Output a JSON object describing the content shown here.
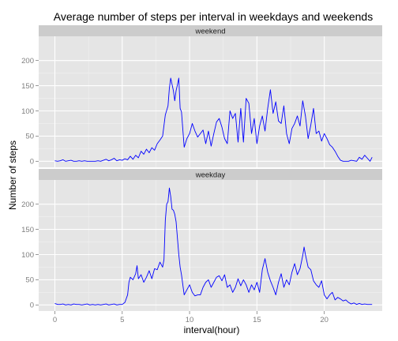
{
  "chart_data": {
    "type": "line",
    "title": "Average number of steps per interval in weekdays and weekends",
    "xlabel": "interval(hour)",
    "ylabel": "Number of steps",
    "xlim": [
      -1.2,
      24.3
    ],
    "ylim": [
      -12,
      248
    ],
    "x_ticks": [
      0,
      5,
      10,
      15,
      20
    ],
    "y_ticks": [
      0,
      50,
      100,
      150,
      200
    ],
    "grid": true,
    "line_color": "#0000ff",
    "panel_background": "#e5e5e5",
    "strip_background": "#cccccc",
    "panels": [
      {
        "label": "weekend",
        "points": [
          [
            0.0,
            1
          ],
          [
            0.2,
            0
          ],
          [
            0.4,
            1
          ],
          [
            0.6,
            3
          ],
          [
            0.8,
            0
          ],
          [
            1.0,
            1
          ],
          [
            1.2,
            2
          ],
          [
            1.4,
            0
          ],
          [
            1.6,
            0
          ],
          [
            1.8,
            1
          ],
          [
            2.0,
            0
          ],
          [
            2.2,
            1
          ],
          [
            2.4,
            0
          ],
          [
            2.6,
            0
          ],
          [
            2.8,
            0
          ],
          [
            3.0,
            0
          ],
          [
            3.2,
            1
          ],
          [
            3.4,
            0
          ],
          [
            3.6,
            2
          ],
          [
            3.8,
            4
          ],
          [
            4.0,
            1
          ],
          [
            4.2,
            3
          ],
          [
            4.4,
            6
          ],
          [
            4.6,
            1
          ],
          [
            4.8,
            3
          ],
          [
            5.0,
            2
          ],
          [
            5.2,
            5
          ],
          [
            5.4,
            3
          ],
          [
            5.6,
            10
          ],
          [
            5.8,
            4
          ],
          [
            6.0,
            12
          ],
          [
            6.2,
            7
          ],
          [
            6.4,
            20
          ],
          [
            6.6,
            14
          ],
          [
            6.8,
            24
          ],
          [
            7.0,
            17
          ],
          [
            7.2,
            27
          ],
          [
            7.4,
            22
          ],
          [
            7.6,
            35
          ],
          [
            7.8,
            42
          ],
          [
            8.0,
            50
          ],
          [
            8.2,
            92
          ],
          [
            8.4,
            110
          ],
          [
            8.5,
            145
          ],
          [
            8.6,
            165
          ],
          [
            8.8,
            140
          ],
          [
            8.9,
            120
          ],
          [
            9.0,
            140
          ],
          [
            9.1,
            152
          ],
          [
            9.2,
            165
          ],
          [
            9.3,
            105
          ],
          [
            9.4,
            98
          ],
          [
            9.6,
            28
          ],
          [
            9.8,
            45
          ],
          [
            10.0,
            55
          ],
          [
            10.2,
            75
          ],
          [
            10.4,
            60
          ],
          [
            10.6,
            48
          ],
          [
            10.8,
            55
          ],
          [
            11.0,
            62
          ],
          [
            11.2,
            35
          ],
          [
            11.4,
            60
          ],
          [
            11.6,
            30
          ],
          [
            11.8,
            55
          ],
          [
            12.0,
            78
          ],
          [
            12.2,
            85
          ],
          [
            12.4,
            68
          ],
          [
            12.6,
            45
          ],
          [
            12.8,
            35
          ],
          [
            13.0,
            100
          ],
          [
            13.2,
            85
          ],
          [
            13.4,
            95
          ],
          [
            13.6,
            38
          ],
          [
            13.8,
            105
          ],
          [
            14.0,
            38
          ],
          [
            14.2,
            125
          ],
          [
            14.4,
            115
          ],
          [
            14.6,
            55
          ],
          [
            14.8,
            85
          ],
          [
            15.0,
            35
          ],
          [
            15.2,
            70
          ],
          [
            15.4,
            90
          ],
          [
            15.6,
            60
          ],
          [
            15.8,
            105
          ],
          [
            16.0,
            142
          ],
          [
            16.2,
            95
          ],
          [
            16.4,
            118
          ],
          [
            16.6,
            80
          ],
          [
            16.8,
            75
          ],
          [
            17.0,
            110
          ],
          [
            17.2,
            55
          ],
          [
            17.4,
            35
          ],
          [
            17.6,
            65
          ],
          [
            17.8,
            75
          ],
          [
            18.0,
            90
          ],
          [
            18.2,
            70
          ],
          [
            18.4,
            120
          ],
          [
            18.6,
            90
          ],
          [
            18.8,
            45
          ],
          [
            19.0,
            72
          ],
          [
            19.2,
            105
          ],
          [
            19.4,
            55
          ],
          [
            19.6,
            60
          ],
          [
            19.8,
            40
          ],
          [
            20.0,
            55
          ],
          [
            20.2,
            45
          ],
          [
            20.4,
            33
          ],
          [
            20.6,
            28
          ],
          [
            20.8,
            20
          ],
          [
            21.0,
            10
          ],
          [
            21.2,
            2
          ],
          [
            21.4,
            0
          ],
          [
            21.6,
            0
          ],
          [
            21.8,
            0
          ],
          [
            22.0,
            2
          ],
          [
            22.2,
            1
          ],
          [
            22.4,
            0
          ],
          [
            22.6,
            8
          ],
          [
            22.8,
            4
          ],
          [
            23.0,
            12
          ],
          [
            23.2,
            6
          ],
          [
            23.4,
            0
          ],
          [
            23.55,
            8
          ]
        ]
      },
      {
        "label": "weekday",
        "points": [
          [
            0.0,
            3
          ],
          [
            0.2,
            1
          ],
          [
            0.4,
            1
          ],
          [
            0.6,
            2
          ],
          [
            0.8,
            0
          ],
          [
            1.0,
            1
          ],
          [
            1.2,
            0
          ],
          [
            1.4,
            2
          ],
          [
            1.6,
            1
          ],
          [
            1.8,
            1
          ],
          [
            2.0,
            0
          ],
          [
            2.2,
            1
          ],
          [
            2.4,
            2
          ],
          [
            2.6,
            0
          ],
          [
            2.8,
            1
          ],
          [
            3.0,
            0
          ],
          [
            3.2,
            1
          ],
          [
            3.4,
            0
          ],
          [
            3.6,
            1
          ],
          [
            3.8,
            2
          ],
          [
            4.0,
            0
          ],
          [
            4.2,
            1
          ],
          [
            4.4,
            2
          ],
          [
            4.6,
            0
          ],
          [
            4.8,
            1
          ],
          [
            5.0,
            1
          ],
          [
            5.2,
            5
          ],
          [
            5.4,
            20
          ],
          [
            5.5,
            45
          ],
          [
            5.6,
            55
          ],
          [
            5.8,
            50
          ],
          [
            6.0,
            62
          ],
          [
            6.1,
            78
          ],
          [
            6.2,
            52
          ],
          [
            6.4,
            60
          ],
          [
            6.6,
            45
          ],
          [
            6.8,
            55
          ],
          [
            7.0,
            68
          ],
          [
            7.2,
            52
          ],
          [
            7.4,
            72
          ],
          [
            7.6,
            70
          ],
          [
            7.8,
            85
          ],
          [
            8.0,
            75
          ],
          [
            8.1,
            90
          ],
          [
            8.2,
            168
          ],
          [
            8.3,
            200
          ],
          [
            8.4,
            205
          ],
          [
            8.5,
            232
          ],
          [
            8.6,
            215
          ],
          [
            8.7,
            190
          ],
          [
            8.8,
            188
          ],
          [
            8.9,
            180
          ],
          [
            9.0,
            165
          ],
          [
            9.2,
            100
          ],
          [
            9.3,
            75
          ],
          [
            9.4,
            60
          ],
          [
            9.6,
            20
          ],
          [
            9.8,
            30
          ],
          [
            10.0,
            40
          ],
          [
            10.2,
            25
          ],
          [
            10.4,
            18
          ],
          [
            10.6,
            20
          ],
          [
            10.8,
            20
          ],
          [
            11.0,
            35
          ],
          [
            11.2,
            45
          ],
          [
            11.4,
            50
          ],
          [
            11.6,
            35
          ],
          [
            11.8,
            45
          ],
          [
            12.0,
            55
          ],
          [
            12.2,
            58
          ],
          [
            12.4,
            48
          ],
          [
            12.6,
            60
          ],
          [
            12.8,
            35
          ],
          [
            13.0,
            40
          ],
          [
            13.2,
            25
          ],
          [
            13.4,
            35
          ],
          [
            13.6,
            52
          ],
          [
            13.8,
            38
          ],
          [
            14.0,
            50
          ],
          [
            14.2,
            40
          ],
          [
            14.4,
            25
          ],
          [
            14.6,
            40
          ],
          [
            14.8,
            30
          ],
          [
            15.0,
            45
          ],
          [
            15.2,
            25
          ],
          [
            15.4,
            70
          ],
          [
            15.6,
            92
          ],
          [
            15.8,
            65
          ],
          [
            16.0,
            48
          ],
          [
            16.2,
            35
          ],
          [
            16.4,
            20
          ],
          [
            16.6,
            45
          ],
          [
            16.8,
            62
          ],
          [
            17.0,
            35
          ],
          [
            17.2,
            50
          ],
          [
            17.4,
            40
          ],
          [
            17.6,
            65
          ],
          [
            17.8,
            82
          ],
          [
            18.0,
            60
          ],
          [
            18.2,
            72
          ],
          [
            18.4,
            98
          ],
          [
            18.5,
            115
          ],
          [
            18.6,
            100
          ],
          [
            18.8,
            75
          ],
          [
            19.0,
            70
          ],
          [
            19.2,
            48
          ],
          [
            19.4,
            40
          ],
          [
            19.6,
            35
          ],
          [
            19.8,
            48
          ],
          [
            20.0,
            20
          ],
          [
            20.2,
            12
          ],
          [
            20.4,
            20
          ],
          [
            20.6,
            25
          ],
          [
            20.8,
            10
          ],
          [
            21.0,
            15
          ],
          [
            21.2,
            12
          ],
          [
            21.4,
            8
          ],
          [
            21.6,
            10
          ],
          [
            21.8,
            5
          ],
          [
            22.0,
            2
          ],
          [
            22.2,
            4
          ],
          [
            22.4,
            1
          ],
          [
            22.6,
            3
          ],
          [
            22.8,
            1
          ],
          [
            23.0,
            2
          ],
          [
            23.2,
            1
          ],
          [
            23.55,
            1
          ]
        ]
      }
    ]
  }
}
